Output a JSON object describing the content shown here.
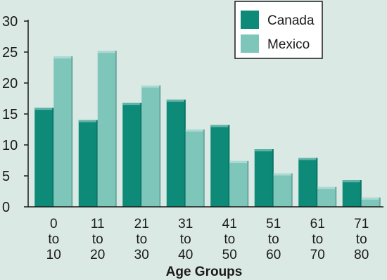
{
  "chart_data": {
    "type": "bar",
    "title": "",
    "xlabel": "Age Groups",
    "ylabel": "",
    "ylim": [
      0,
      30
    ],
    "yticks": [
      0,
      5,
      10,
      15,
      20,
      25,
      30
    ],
    "grid": false,
    "legend_position": "top-right",
    "categories": [
      [
        "0",
        "to",
        "10"
      ],
      [
        "11",
        "to",
        "20"
      ],
      [
        "21",
        "to",
        "30"
      ],
      [
        "31",
        "to",
        "40"
      ],
      [
        "41",
        "to",
        "50"
      ],
      [
        "51",
        "to",
        "60"
      ],
      [
        "61",
        "to",
        "70"
      ],
      [
        "71",
        "to",
        "80"
      ]
    ],
    "series": [
      {
        "name": "Canada",
        "color": "#0e8a78",
        "values": [
          16,
          14,
          16.8,
          17.3,
          13.2,
          9.3,
          7.9,
          4.3
        ]
      },
      {
        "name": "Mexico",
        "color": "#7ec6ba",
        "values": [
          24.3,
          25.2,
          19.6,
          12.5,
          7.4,
          5.4,
          3.2,
          1.5
        ]
      }
    ]
  }
}
